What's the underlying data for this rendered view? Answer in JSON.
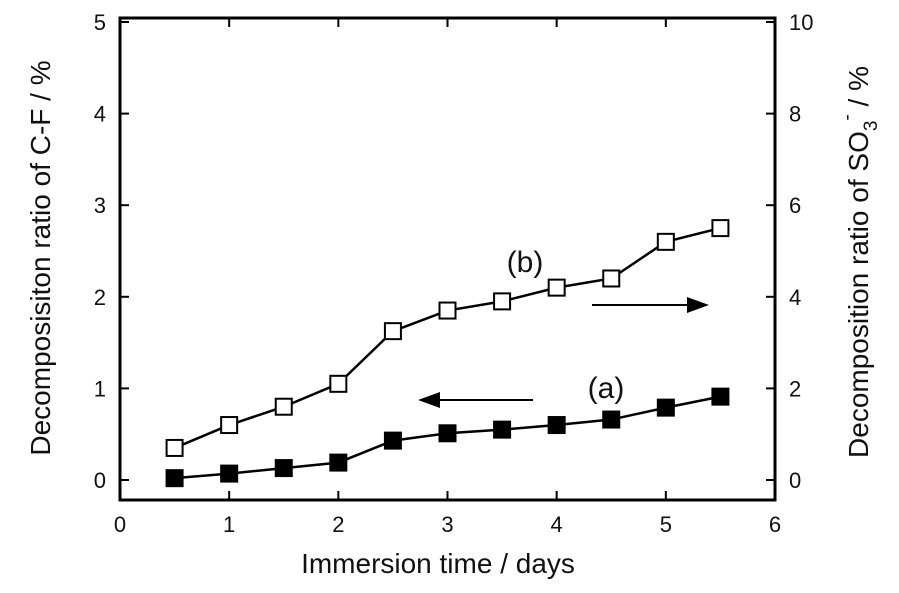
{
  "chart_data": {
    "type": "line",
    "xlabel": "Immersion time / days",
    "ylabel_left": "Decomposisiton ratio of C-F / %",
    "ylabel_right_main": "Decomposition ratio of SO",
    "ylabel_right_sub": "3",
    "ylabel_right_sup": "-",
    "ylabel_right_tail": " / %",
    "xlim": [
      0,
      6
    ],
    "ylim_left": [
      0,
      5
    ],
    "ylim_right": [
      0,
      10
    ],
    "xticks": [
      "0",
      "1",
      "2",
      "3",
      "4",
      "5",
      "6"
    ],
    "yticks_left": [
      "0",
      "1",
      "2",
      "3",
      "4",
      "5"
    ],
    "yticks_right": [
      "0",
      "2",
      "4",
      "6",
      "8",
      "10"
    ],
    "grid": false,
    "series": [
      {
        "name": "(a)",
        "axis": "left",
        "marker": "filled-square",
        "x": [
          0.5,
          1.0,
          1.5,
          2.0,
          2.5,
          3.0,
          3.5,
          4.0,
          4.5,
          5.0,
          5.5
        ],
        "y": [
          0.02,
          0.07,
          0.13,
          0.19,
          0.43,
          0.51,
          0.55,
          0.6,
          0.66,
          0.79,
          0.91
        ]
      },
      {
        "name": "(b)",
        "axis": "right",
        "marker": "open-square",
        "x": [
          0.5,
          1.0,
          1.5,
          2.0,
          2.5,
          3.0,
          3.5,
          4.0,
          4.5,
          5.0,
          5.5
        ],
        "y": [
          0.7,
          1.2,
          1.6,
          2.1,
          3.25,
          3.7,
          3.9,
          4.2,
          4.4,
          5.2,
          5.5
        ]
      }
    ],
    "annotations": [
      {
        "text": "(a)",
        "series": "(a)",
        "arrow": "left"
      },
      {
        "text": "(b)",
        "series": "(b)",
        "arrow": "right"
      }
    ]
  }
}
